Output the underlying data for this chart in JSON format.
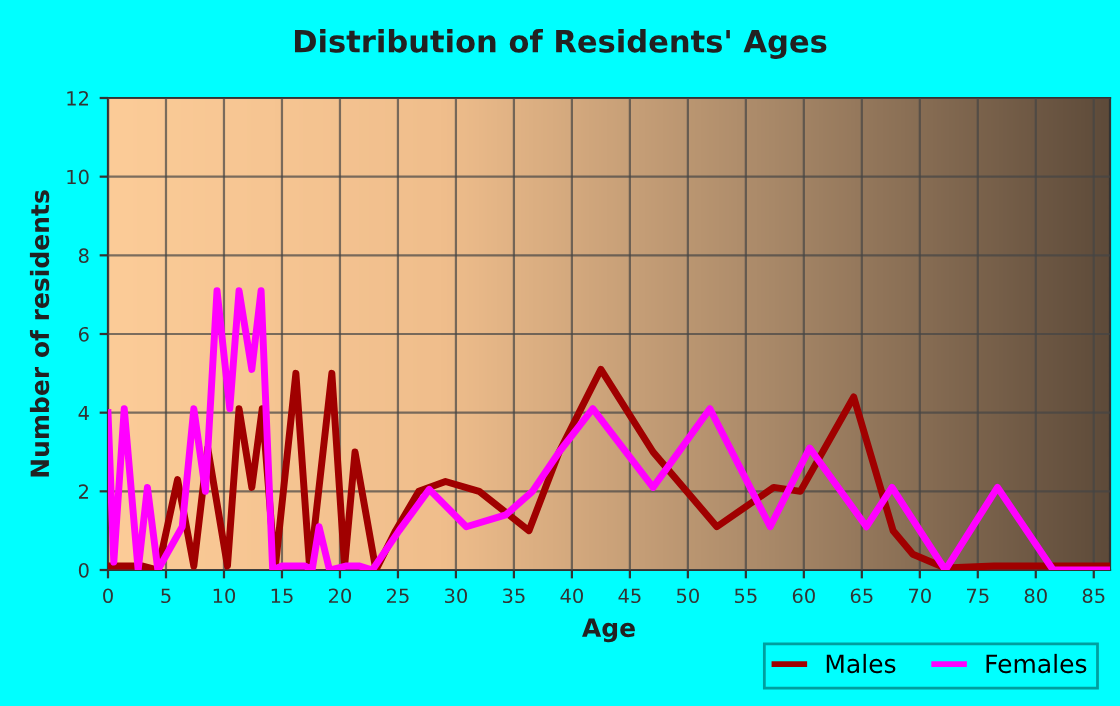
{
  "chart_data": {
    "type": "line",
    "title": "Distribution of Residents' Ages",
    "xlabel": "Age",
    "ylabel": "Number of residents",
    "xlim": [
      0,
      86.4
    ],
    "xticks": [
      0,
      5,
      10,
      15,
      20,
      25,
      30,
      35,
      40,
      45,
      50,
      55,
      60,
      65,
      70,
      75,
      80,
      85
    ],
    "ylim": [
      0,
      12
    ],
    "yticks": [
      0,
      2,
      4,
      6,
      8,
      10,
      12
    ],
    "grid": true,
    "legend": "bottom right",
    "line_style": "solid",
    "series": [
      {
        "name": "Males",
        "color": "#a00000",
        "x": [
          0,
          3,
          4.3,
          6.0,
          7.4,
          8.6,
          10.3,
          11.3,
          12.4,
          13.3,
          14.4,
          16.2,
          17.4,
          19.3,
          20.4,
          21.3,
          23.1,
          24.8,
          26.8,
          29.1,
          32.0,
          36.3,
          38.9,
          42.5,
          47.0,
          52.5,
          57.4,
          59.7,
          64.3,
          67.7,
          69.4,
          72.2,
          76.4,
          86.4
        ],
        "values": [
          0.1,
          0.1,
          0,
          2.3,
          0.1,
          3.1,
          0.1,
          4.1,
          2.1,
          4.1,
          0,
          5.0,
          0,
          5.0,
          0.1,
          3.0,
          0,
          1.0,
          2.0,
          2.25,
          2.0,
          1.0,
          3.0,
          5.1,
          3.0,
          1.1,
          2.1,
          2.0,
          4.4,
          1.0,
          0.4,
          0.05,
          0.1,
          0.1
        ]
      },
      {
        "name": "Females",
        "color": "#ff00ff",
        "x": [
          0,
          0.5,
          1.4,
          2.6,
          3.4,
          4.3,
          6.4,
          7.4,
          8.4,
          9.4,
          10.5,
          11.3,
          12.4,
          13.2,
          14.2,
          15,
          17,
          17.6,
          18.2,
          19.1,
          20.5,
          21.7,
          22.8,
          25.1,
          27.7,
          30.9,
          34.3,
          36.6,
          38.9,
          41.8,
          47.0,
          51.9,
          57.1,
          60.5,
          65.4,
          67.6,
          72.2,
          76.7,
          81.5,
          86.4
        ],
        "values": [
          4,
          0.2,
          4.1,
          0,
          2.1,
          0,
          1.1,
          4.1,
          2,
          7.1,
          4.1,
          7.1,
          5.1,
          7.1,
          0,
          0.1,
          0.1,
          0,
          1.1,
          0,
          0.1,
          0.1,
          0,
          1.0,
          2.05,
          1.1,
          1.4,
          2,
          3,
          4.1,
          2.1,
          4.1,
          1.1,
          3.1,
          1.1,
          2.1,
          0,
          2.1,
          0,
          0
        ]
      }
    ]
  }
}
